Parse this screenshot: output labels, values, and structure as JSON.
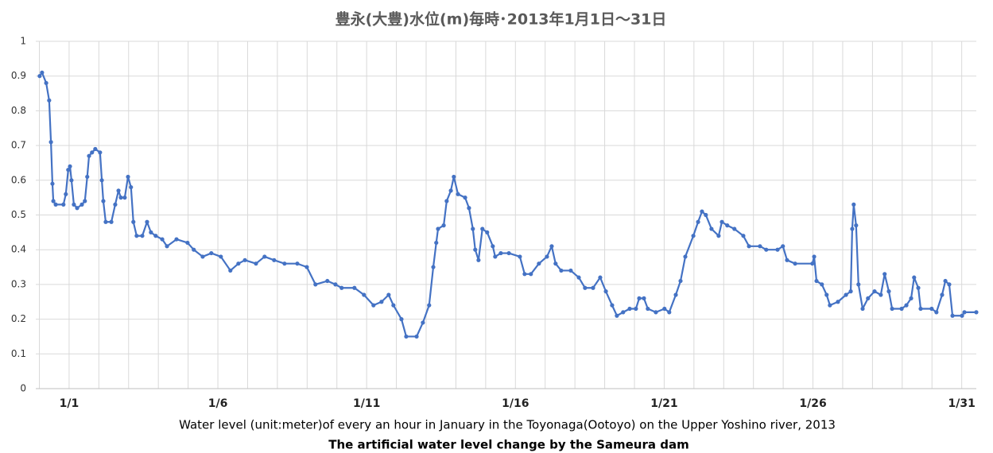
{
  "chart_data": {
    "type": "line",
    "title": "豊永(大豊)水位(m)毎時･2013年1月1日～31日",
    "x_label": "Water level (unit:meter)of every an hour in January in the Toyonaga(Ootoyo) on the Upper Yoshino river, 2013",
    "subtitle": "The artificial water level change by the Sameura dam",
    "color": "#4472c4",
    "x": [
      -0.99,
      -0.91,
      -0.77,
      -0.67,
      -0.61,
      -0.56,
      -0.53,
      -0.45,
      -0.19,
      -0.11,
      -0.03,
      0.03,
      0.08,
      0.16,
      0.27,
      0.43,
      0.53,
      0.61,
      0.67,
      0.77,
      0.88,
      1.04,
      1.1,
      1.15,
      1.23,
      1.42,
      1.55,
      1.66,
      1.74,
      1.87,
      1.98,
      2.08,
      2.16,
      2.27,
      2.46,
      2.62,
      2.75,
      2.91,
      3.13,
      3.29,
      3.61,
      3.98,
      4.19,
      4.49,
      4.78,
      5.1,
      5.42,
      5.69,
      5.91,
      6.28,
      6.57,
      6.89,
      7.24,
      7.67,
      7.99,
      8.28,
      8.68,
      8.95,
      9.16,
      9.59,
      9.91,
      10.23,
      10.5,
      10.74,
      10.9,
      11.17,
      11.33,
      11.68,
      11.89,
      12.1,
      12.24,
      12.34,
      12.4,
      12.59,
      12.69,
      12.83,
      12.93,
      13.07,
      13.31,
      13.44,
      13.57,
      13.65,
      13.76,
      13.89,
      14.05,
      14.24,
      14.32,
      14.51,
      14.78,
      15.15,
      15.31,
      15.52,
      15.79,
      16.06,
      16.22,
      16.35,
      16.54,
      16.86,
      17.13,
      17.34,
      17.61,
      17.85,
      18.04,
      18.25,
      18.41,
      18.62,
      18.84,
      19.05,
      19.16,
      19.32,
      19.45,
      19.72,
      20.01,
      20.17,
      20.39,
      20.55,
      20.71,
      20.98,
      21.14,
      21.27,
      21.4,
      21.59,
      21.83,
      21.94,
      22.12,
      22.36,
      22.66,
      22.85,
      23.22,
      23.43,
      23.81,
      23.99,
      24.13,
      24.4,
      24.98,
      25.04,
      25.12,
      25.3,
      25.46,
      25.57,
      25.84,
      26.11,
      26.27,
      26.32,
      26.37,
      26.45,
      26.53,
      26.67,
      26.85,
      27.07,
      27.28,
      27.41,
      27.55,
      27.66,
      27.98,
      28.14,
      28.3,
      28.4,
      28.54,
      28.62,
      28.99,
      29.15,
      29.34,
      29.45,
      29.58,
      29.69,
      30.01,
      30.09,
      30.49
    ],
    "values": [
      0.9,
      0.91,
      0.88,
      0.83,
      0.71,
      0.59,
      0.54,
      0.53,
      0.53,
      0.56,
      0.63,
      0.64,
      0.6,
      0.53,
      0.52,
      0.53,
      0.54,
      0.61,
      0.67,
      0.68,
      0.69,
      0.68,
      0.6,
      0.54,
      0.48,
      0.48,
      0.53,
      0.57,
      0.55,
      0.55,
      0.61,
      0.58,
      0.48,
      0.44,
      0.44,
      0.48,
      0.45,
      0.44,
      0.43,
      0.41,
      0.43,
      0.42,
      0.4,
      0.38,
      0.39,
      0.38,
      0.34,
      0.36,
      0.37,
      0.36,
      0.38,
      0.37,
      0.36,
      0.36,
      0.35,
      0.3,
      0.31,
      0.3,
      0.29,
      0.29,
      0.27,
      0.24,
      0.25,
      0.27,
      0.24,
      0.2,
      0.15,
      0.15,
      0.19,
      0.24,
      0.35,
      0.42,
      0.46,
      0.47,
      0.54,
      0.57,
      0.61,
      0.56,
      0.55,
      0.52,
      0.46,
      0.4,
      0.37,
      0.46,
      0.45,
      0.41,
      0.38,
      0.39,
      0.39,
      0.38,
      0.33,
      0.33,
      0.36,
      0.38,
      0.41,
      0.36,
      0.34,
      0.34,
      0.32,
      0.29,
      0.29,
      0.32,
      0.28,
      0.24,
      0.21,
      0.22,
      0.23,
      0.23,
      0.26,
      0.26,
      0.23,
      0.22,
      0.23,
      0.22,
      0.27,
      0.31,
      0.38,
      0.44,
      0.48,
      0.51,
      0.5,
      0.46,
      0.44,
      0.48,
      0.47,
      0.46,
      0.44,
      0.41,
      0.41,
      0.4,
      0.4,
      0.41,
      0.37,
      0.36,
      0.36,
      0.38,
      0.31,
      0.3,
      0.27,
      0.24,
      0.25,
      0.27,
      0.28,
      0.46,
      0.53,
      0.47,
      0.3,
      0.23,
      0.26,
      0.28,
      0.27,
      0.33,
      0.28,
      0.23,
      0.23,
      0.24,
      0.26,
      0.32,
      0.29,
      0.23,
      0.23,
      0.22,
      0.27,
      0.31,
      0.3,
      0.21,
      0.21,
      0.22,
      0.22
    ],
    "xlim": [
      -1.12,
      30.49
    ],
    "xticks": [
      {
        "value": 0,
        "label": "1/1"
      },
      {
        "value": 5,
        "label": "1/6"
      },
      {
        "value": 10,
        "label": "1/11"
      },
      {
        "value": 15,
        "label": "1/16"
      },
      {
        "value": 20,
        "label": "1/21"
      },
      {
        "value": 25,
        "label": "1/26"
      },
      {
        "value": 30,
        "label": "1/31"
      }
    ],
    "x_gridlines": [
      -1,
      0,
      1,
      2,
      3,
      4,
      5,
      6,
      7,
      8,
      9,
      10,
      11,
      12,
      13,
      14,
      15,
      16,
      17,
      18,
      19,
      20,
      21,
      22,
      23,
      24,
      25,
      26,
      27,
      28,
      29,
      30
    ],
    "ylim": [
      0,
      1
    ],
    "yticks": [
      0,
      0.1,
      0.2,
      0.3,
      0.4,
      0.5,
      0.6,
      0.7,
      0.8,
      0.9,
      1
    ],
    "grid": true
  }
}
